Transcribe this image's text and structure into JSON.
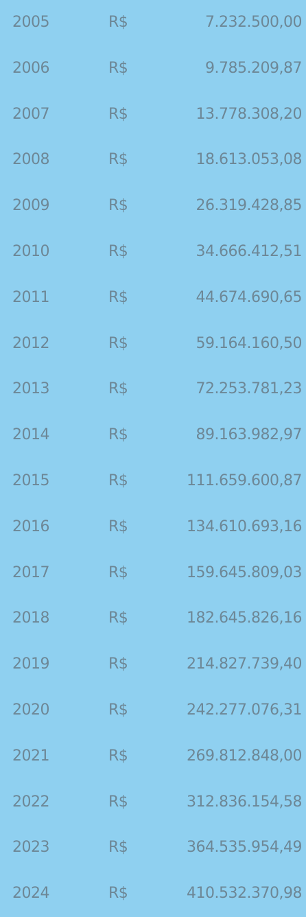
{
  "table": {
    "rows": [
      [
        "2005",
        "R$",
        "7.232.500,00"
      ],
      [
        "2006",
        "R$",
        "9.785.209,87"
      ],
      [
        "2007",
        "R$",
        "13.778.308,20"
      ],
      [
        "2008",
        "R$",
        "18.613.053,08"
      ],
      [
        "2009",
        "R$",
        "26.319.428,85"
      ],
      [
        "2010",
        "R$",
        "34.666.412,51"
      ],
      [
        "2011",
        "R$",
        "44.674.690,65"
      ],
      [
        "2012",
        "R$",
        "59.164.160,50"
      ],
      [
        "2013",
        "R$",
        "72.253.781,23"
      ],
      [
        "2014",
        "R$",
        "89.163.982,97"
      ],
      [
        "2015",
        "R$",
        "111.659.600,87"
      ],
      [
        "2016",
        "R$",
        "134.610.693,16"
      ],
      [
        "2017",
        "R$",
        "159.645.809,03"
      ],
      [
        "2018",
        "R$",
        "182.645.826,16"
      ],
      [
        "2019",
        "R$",
        "214.827.739,40"
      ],
      [
        "2020",
        "R$",
        "242.277.076,31"
      ],
      [
        "2021",
        "R$",
        "269.812.848,00"
      ],
      [
        "2022",
        "R$",
        "312.836.154,58"
      ],
      [
        "2023",
        "R$",
        "364.535.954,49"
      ],
      [
        "2024",
        "R$",
        "410.532.370,98"
      ]
    ]
  }
}
